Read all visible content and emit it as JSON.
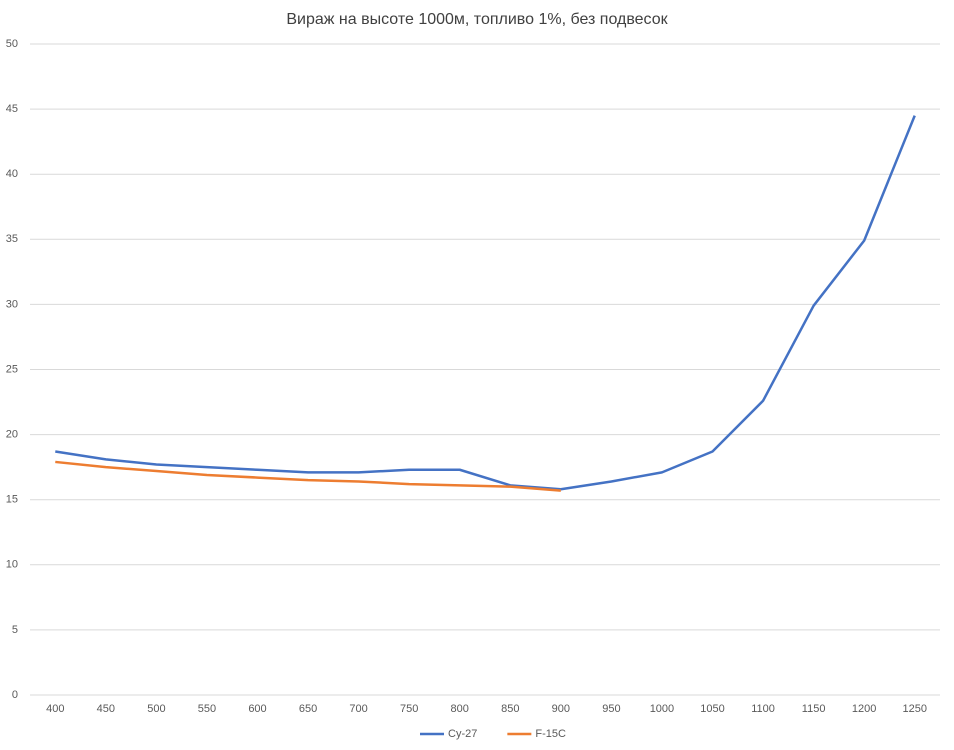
{
  "chart_data": {
    "type": "line",
    "title": "Вираж на высоте 1000м, топливо 1%, без подвесок",
    "categories": [
      "400",
      "450",
      "500",
      "550",
      "600",
      "650",
      "700",
      "750",
      "800",
      "850",
      "900",
      "950",
      "1000",
      "1050",
      "1100",
      "1150",
      "1200",
      "1250"
    ],
    "series": [
      {
        "name": "Су-27",
        "color": "#4472c4",
        "values": [
          18.7,
          18.1,
          17.7,
          17.5,
          17.3,
          17.1,
          17.1,
          17.3,
          17.3,
          16.1,
          15.8,
          16.4,
          17.1,
          18.7,
          22.6,
          29.9,
          34.9,
          44.5
        ]
      },
      {
        "name": "F-15C",
        "color": "#ed7d31",
        "values": [
          17.9,
          17.5,
          17.2,
          16.9,
          16.7,
          16.5,
          16.4,
          16.2,
          16.1,
          16.0,
          15.7,
          null,
          null,
          null,
          null,
          null,
          null,
          null
        ]
      }
    ],
    "ylim": [
      0,
      50
    ],
    "yticks": [
      0,
      5,
      10,
      15,
      20,
      25,
      30,
      35,
      40,
      45,
      50
    ],
    "grid": true,
    "legend": "bottom"
  }
}
